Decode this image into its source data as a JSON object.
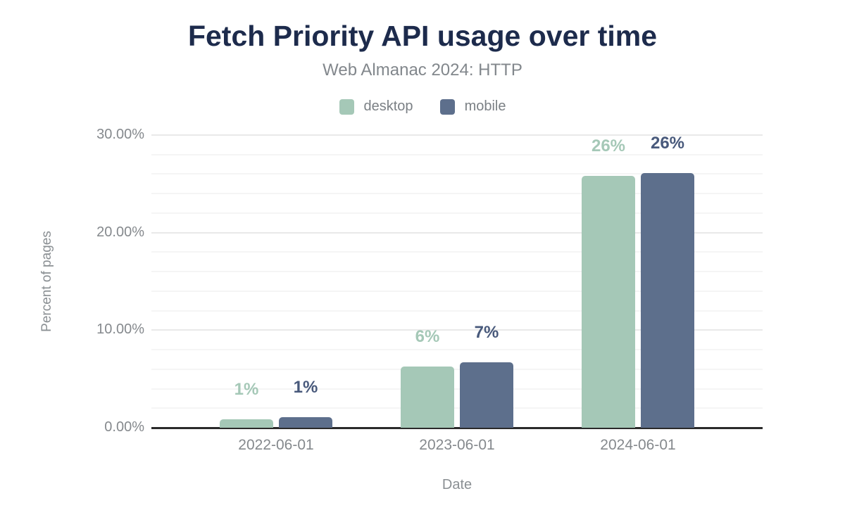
{
  "header": {
    "title": "Fetch Priority API usage over time",
    "subtitle": "Web Almanac 2024: HTTP"
  },
  "chart_data": {
    "type": "bar",
    "title": "Fetch Priority API usage over time",
    "subtitle": "Web Almanac 2024: HTTP",
    "categories": [
      "2022-06-01",
      "2023-06-01",
      "2024-06-01"
    ],
    "series": [
      {
        "name": "desktop",
        "color": "#a5c8b7",
        "label_color": "#a5c8b7",
        "values": [
          0.9,
          6.3,
          25.8
        ],
        "labels": [
          "1%",
          "6%",
          "26%"
        ]
      },
      {
        "name": "mobile",
        "color": "#5d6f8c",
        "label_color": "#48597b",
        "values": [
          1.1,
          6.7,
          26.1
        ],
        "labels": [
          "1%",
          "7%",
          "26%"
        ]
      }
    ],
    "xlabel": "Date",
    "ylabel": "Percent of pages",
    "ylim": [
      0,
      30
    ],
    "yticks": [
      {
        "value": 0,
        "label": "0.00%"
      },
      {
        "value": 10,
        "label": "10.00%"
      },
      {
        "value": 20,
        "label": "20.00%"
      },
      {
        "value": 30,
        "label": "30.00%"
      }
    ],
    "minor_grid_step": 2,
    "major_grid_step": 10,
    "grid": true,
    "legend_position": "top"
  },
  "colors": {
    "title": "#1d2b4c",
    "subtitle": "#82878c",
    "tick_label": "#85898d",
    "axis_title": "#8a8f93",
    "grid_minor": "#f5f5f5",
    "grid_major": "#e9e9e9",
    "baseline": "#2a2a2a",
    "background": "#ffffff"
  }
}
